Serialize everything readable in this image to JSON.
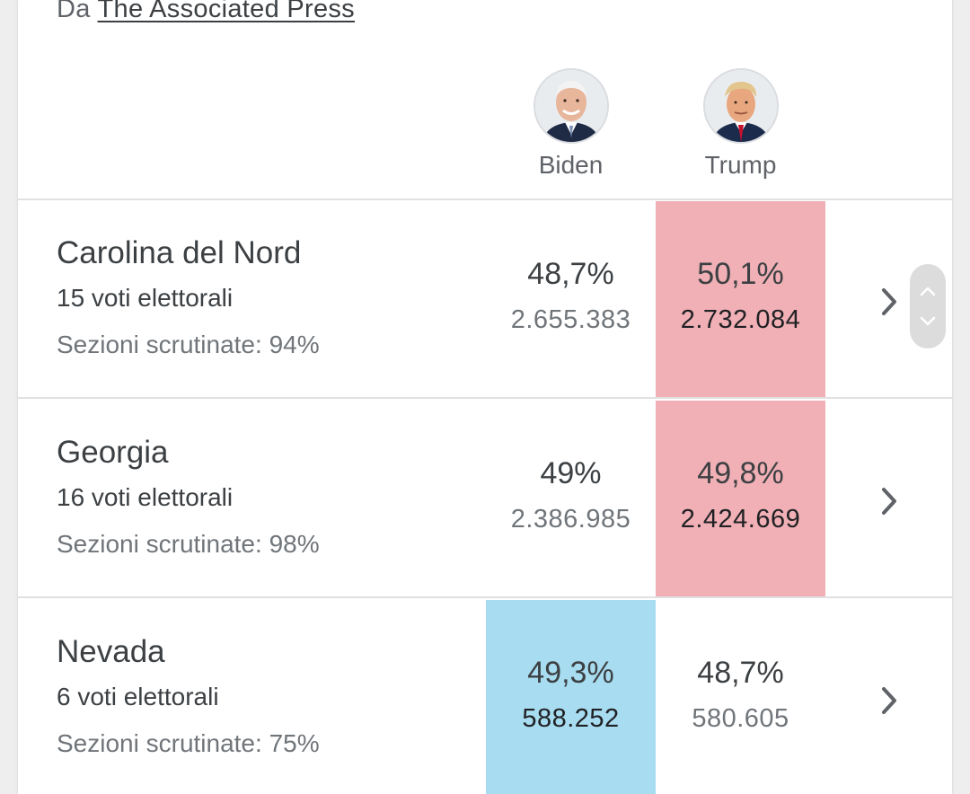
{
  "source": {
    "prefix": "Da",
    "link": "The Associated Press"
  },
  "candidates": [
    {
      "name": "Biden",
      "avatar_icon": "biden-portrait-icon",
      "color": "#a8dcf0"
    },
    {
      "name": "Trump",
      "avatar_icon": "trump-portrait-icon",
      "color": "#f0b0b5"
    }
  ],
  "rows": [
    {
      "state": "Carolina del Nord",
      "electoral_votes": "15 voti elettorali",
      "sections": "Sezioni scrutinate: 94%",
      "biden": {
        "pct": "48,7%",
        "votes": "2.655.383"
      },
      "trump": {
        "pct": "50,1%",
        "votes": "2.732.084"
      },
      "leader": "Trump"
    },
    {
      "state": "Georgia",
      "electoral_votes": "16 voti elettorali",
      "sections": "Sezioni scrutinate: 98%",
      "biden": {
        "pct": "49%",
        "votes": "2.386.985"
      },
      "trump": {
        "pct": "49,8%",
        "votes": "2.424.669"
      },
      "leader": "Trump"
    },
    {
      "state": "Nevada",
      "electoral_votes": "6 voti elettorali",
      "sections": "Sezioni scrutinate: 75%",
      "biden": {
        "pct": "49,3%",
        "votes": "588.252"
      },
      "trump": {
        "pct": "48,7%",
        "votes": "580.605"
      },
      "leader": "Biden"
    }
  ],
  "icons": {
    "row_chevron": "chevron-right-icon",
    "scroll_up": "chevron-up-icon",
    "scroll_down": "chevron-down-icon"
  }
}
